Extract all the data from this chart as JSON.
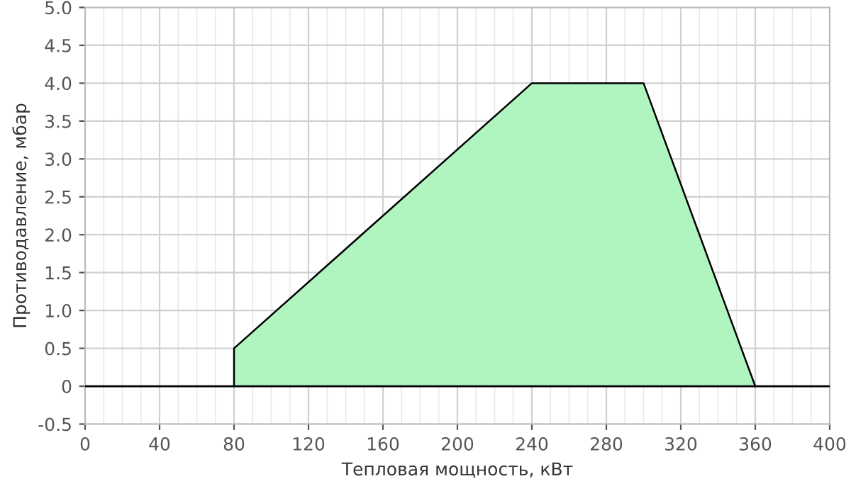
{
  "chart_data": {
    "type": "area",
    "xlabel": "Тепловая мощность, кВт",
    "ylabel": "Противодавление, мбар",
    "x": [
      80,
      80,
      240,
      300,
      360
    ],
    "series": [
      {
        "color": "#b0f5c0",
        "values": [
          0,
          0.5,
          4,
          4,
          0
        ]
      }
    ],
    "xlim": [
      0,
      400
    ],
    "xticks": [
      0,
      40,
      80,
      120,
      160,
      200,
      240,
      280,
      320,
      360,
      400
    ],
    "ylim": [
      -0.5,
      5
    ],
    "yticks": [
      -0.5,
      0,
      0.5,
      {
        "value": 1,
        "label": "1.0"
      },
      1.5,
      {
        "value": 2,
        "label": "2.0"
      },
      2.5,
      {
        "value": 3,
        "label": "3.0"
      },
      3.5,
      {
        "value": 4,
        "label": "4.0"
      },
      4.5,
      {
        "value": 5,
        "label": "5.0"
      }
    ],
    "ref_lines": [
      {
        "axis": "y",
        "value": 0,
        "color": "#000000"
      }
    ],
    "grid": true,
    "legend": false
  }
}
